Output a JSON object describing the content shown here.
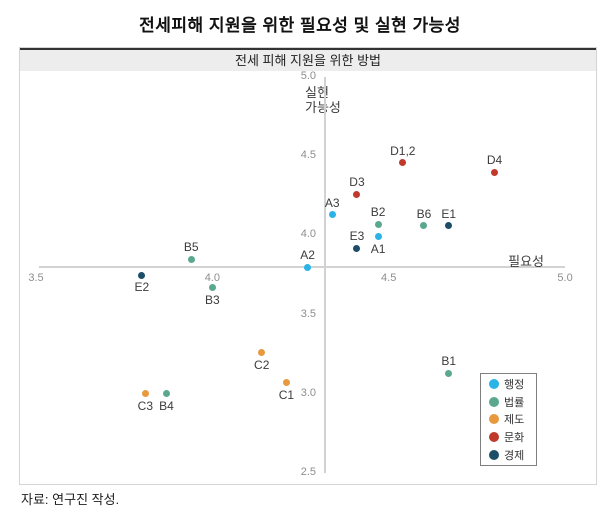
{
  "title": "전세피해 지원을 위한 필요성 및 실현 가능성",
  "source_note": "자료: 연구진 작성.",
  "colors": {
    "axis_line": "#d2d2d2",
    "tick_label": "#8e8e8e",
    "point_label": "#3c3c3c",
    "subtitle_bg": "#ededed",
    "subtitle_top_border": "#333333",
    "panel_border": "#d4d4d4",
    "legend_border": "#7f7f7f"
  },
  "chart_data": {
    "type": "scatter",
    "subtitle": "전세 피해 지원을 위한 방법",
    "xlabel": "필요성",
    "ylabel": "실현 가능성",
    "ylabel_lines": [
      "실현",
      "가능성"
    ],
    "xlim": [
      3.5,
      5.0
    ],
    "ylim": [
      2.5,
      5.0
    ],
    "x_ticks": [
      "3.5",
      "4.0",
      "4.5",
      "5.0"
    ],
    "y_ticks": [
      "5.0",
      "4.5",
      "4.0",
      "3.5",
      "3.0",
      "2.5"
    ],
    "axis_cross": {
      "x": 4.32,
      "y": 3.8
    },
    "grid": false,
    "legend_position": "bottom-right",
    "series": [
      {
        "name": "행정",
        "color": "#29B3E6",
        "points": [
          {
            "label": "A1",
            "x": 4.47,
            "y": 3.99,
            "label_pos": "below"
          },
          {
            "label": "A2",
            "x": 4.27,
            "y": 3.8,
            "label_pos": "above"
          },
          {
            "label": "A3",
            "x": 4.34,
            "y": 4.13,
            "label_pos": "above"
          }
        ]
      },
      {
        "name": "법률",
        "color": "#5BA88E",
        "points": [
          {
            "label": "B1",
            "x": 4.67,
            "y": 3.13,
            "label_pos": "above"
          },
          {
            "label": "B2",
            "x": 4.47,
            "y": 4.07,
            "label_pos": "above"
          },
          {
            "label": "B3",
            "x": 4.0,
            "y": 3.67,
            "label_pos": "below"
          },
          {
            "label": "B4",
            "x": 3.87,
            "y": 3.0,
            "label_pos": "below"
          },
          {
            "label": "B5",
            "x": 3.94,
            "y": 3.85,
            "label_pos": "above"
          },
          {
            "label": "B6",
            "x": 4.6,
            "y": 4.06,
            "label_pos": "above"
          }
        ]
      },
      {
        "name": "제도",
        "color": "#E8993E",
        "points": [
          {
            "label": "C1",
            "x": 4.21,
            "y": 3.07,
            "label_pos": "below"
          },
          {
            "label": "C2",
            "x": 4.14,
            "y": 3.26,
            "label_pos": "below"
          },
          {
            "label": "C3",
            "x": 3.81,
            "y": 3.0,
            "label_pos": "below"
          }
        ]
      },
      {
        "name": "문화",
        "color": "#BF3A2A",
        "points": [
          {
            "label": "D1,2",
            "x": 4.54,
            "y": 4.46,
            "label_pos": "above"
          },
          {
            "label": "D3",
            "x": 4.41,
            "y": 4.26,
            "label_pos": "above"
          },
          {
            "label": "D4",
            "x": 4.8,
            "y": 4.4,
            "label_pos": "above"
          }
        ]
      },
      {
        "name": "경제",
        "color": "#1D4E68",
        "points": [
          {
            "label": "E1",
            "x": 4.67,
            "y": 4.06,
            "label_pos": "above"
          },
          {
            "label": "E2",
            "x": 3.8,
            "y": 3.75,
            "label_pos": "below"
          },
          {
            "label": "E3",
            "x": 4.41,
            "y": 3.92,
            "label_pos": "above"
          }
        ]
      }
    ]
  }
}
